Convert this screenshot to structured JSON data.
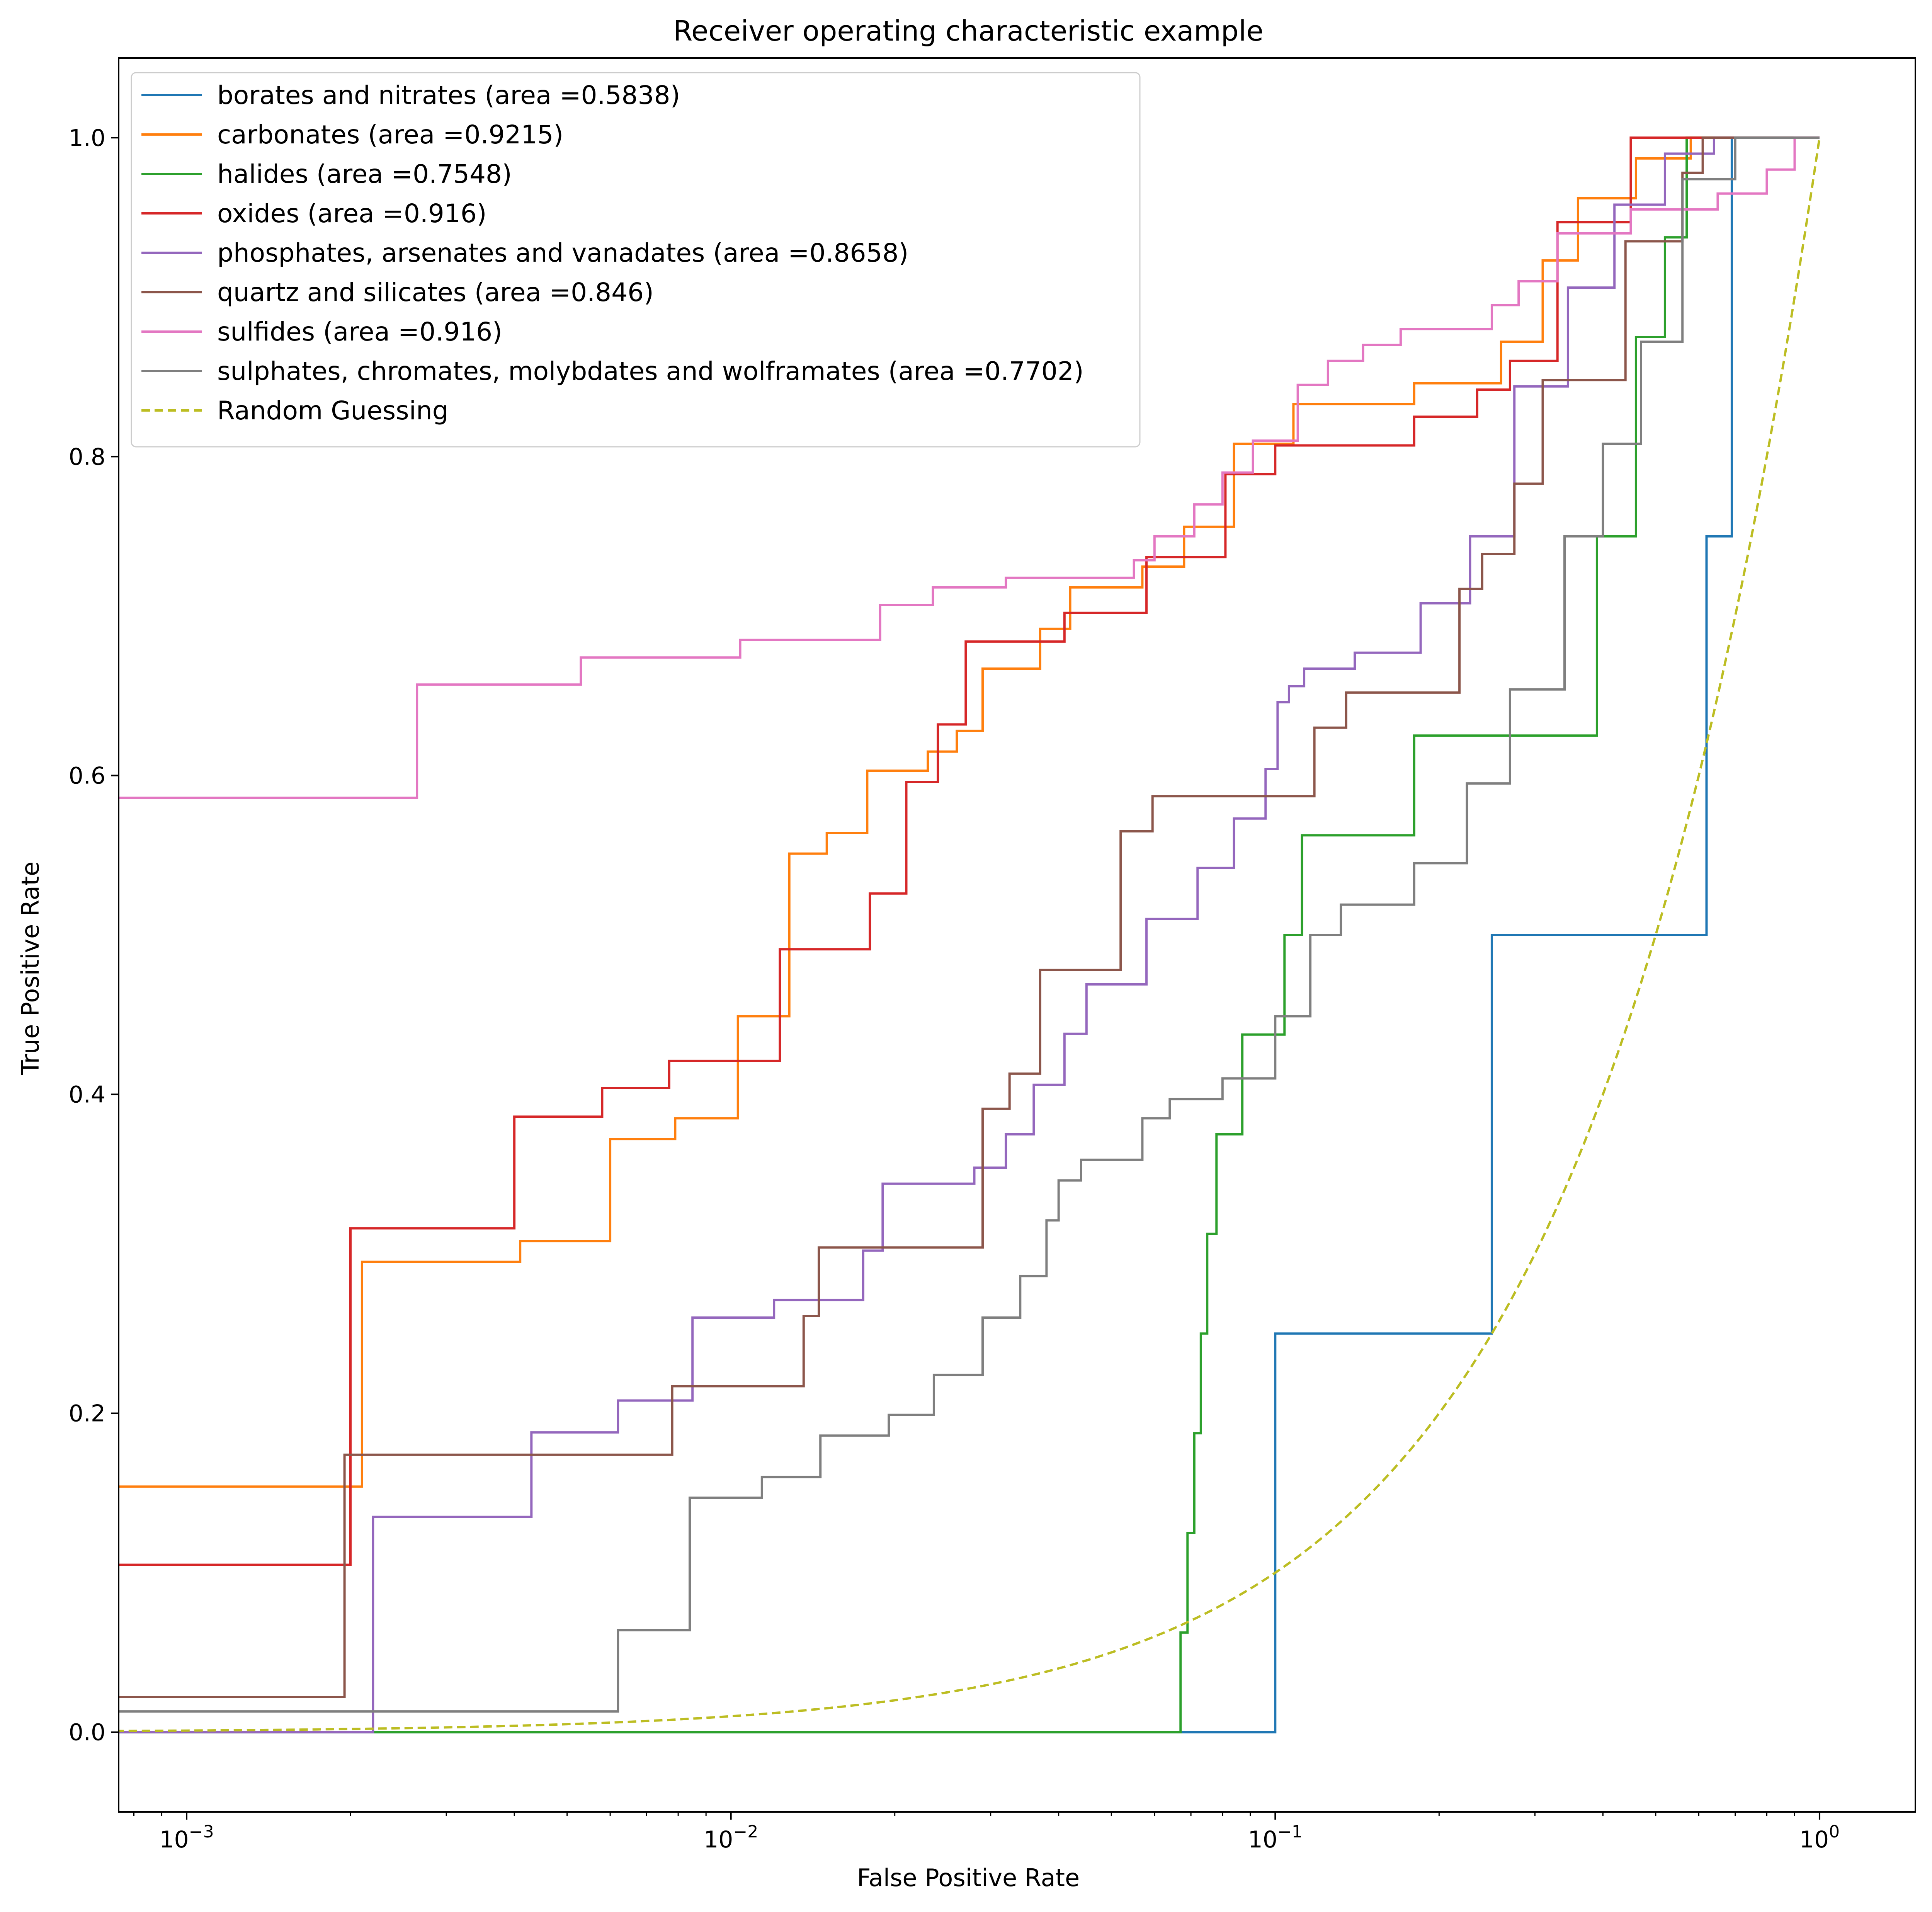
{
  "chart_data": {
    "type": "line",
    "title": "Receiver operating characteristic example",
    "xlabel": "False Positive Rate",
    "ylabel": "True Positive Rate",
    "xscale": "log",
    "xlim": [
      0.00075,
      1.5
    ],
    "ylim": [
      -0.05,
      1.05
    ],
    "xticks": [
      {
        "value": 0.001,
        "base": "10",
        "exp": "−3"
      },
      {
        "value": 0.01,
        "base": "10",
        "exp": "−2"
      },
      {
        "value": 0.1,
        "base": "10",
        "exp": "−1"
      },
      {
        "value": 1,
        "base": "10",
        "exp": "0"
      }
    ],
    "yticks": [
      {
        "value": 0.0,
        "label": "0.0"
      },
      {
        "value": 0.2,
        "label": "0.2"
      },
      {
        "value": 0.4,
        "label": "0.4"
      },
      {
        "value": 0.6,
        "label": "0.6"
      },
      {
        "value": 0.8,
        "label": "0.8"
      },
      {
        "value": 1.0,
        "label": "1.0"
      }
    ],
    "grid": false,
    "legend_position": "upper-left",
    "series": [
      {
        "name": "borates and nitrates (area =0.5838)",
        "color": "#1f77b4",
        "style": "step",
        "x": [
          0.0007,
          0.1,
          0.1,
          0.25,
          0.25,
          0.62,
          0.62,
          0.69,
          0.69
        ],
        "y": [
          0.0,
          0.0,
          0.25,
          0.25,
          0.5,
          0.5,
          0.75,
          0.75,
          1.0
        ]
      },
      {
        "name": "carbonates (area =0.9215)",
        "color": "#ff7f0e",
        "style": "step",
        "x": [
          0.0007,
          0.0021,
          0.0021,
          0.0041,
          0.0041,
          0.006,
          0.006,
          0.0079,
          0.0079,
          0.0103,
          0.0103,
          0.0128,
          0.0128,
          0.015,
          0.015,
          0.0178,
          0.0178,
          0.023,
          0.023,
          0.026,
          0.026,
          0.029,
          0.029,
          0.037,
          0.037,
          0.042,
          0.042,
          0.057,
          0.057,
          0.068,
          0.068,
          0.084,
          0.084,
          0.108,
          0.108,
          0.18,
          0.18,
          0.26,
          0.26,
          0.31,
          0.31,
          0.36,
          0.36,
          0.46,
          0.46,
          0.58,
          0.58,
          0.7,
          0.7,
          1.0
        ],
        "y": [
          0.154,
          0.154,
          0.295,
          0.295,
          0.308,
          0.308,
          0.372,
          0.372,
          0.385,
          0.385,
          0.449,
          0.449,
          0.551,
          0.551,
          0.564,
          0.564,
          0.603,
          0.603,
          0.615,
          0.615,
          0.628,
          0.628,
          0.667,
          0.667,
          0.692,
          0.692,
          0.718,
          0.718,
          0.731,
          0.731,
          0.756,
          0.756,
          0.808,
          0.808,
          0.833,
          0.833,
          0.846,
          0.846,
          0.872,
          0.872,
          0.923,
          0.923,
          0.962,
          0.962,
          0.987,
          0.987,
          1.0,
          1.0,
          1.0,
          1.0
        ]
      },
      {
        "name": "halides (area =0.7548)",
        "color": "#2ca02c",
        "style": "step",
        "x": [
          0.0007,
          0.067,
          0.067,
          0.069,
          0.069,
          0.071,
          0.071,
          0.073,
          0.073,
          0.075,
          0.075,
          0.078,
          0.078,
          0.087,
          0.087,
          0.104,
          0.104,
          0.108,
          0.108,
          0.112,
          0.112,
          0.135,
          0.135,
          0.18,
          0.18,
          0.39,
          0.39,
          0.46,
          0.46,
          0.52,
          0.52,
          0.57,
          0.57,
          0.6,
          0.6,
          1.0
        ],
        "y": [
          0.0,
          0.0,
          0.0625,
          0.0625,
          0.125,
          0.125,
          0.1875,
          0.1875,
          0.25,
          0.25,
          0.3125,
          0.3125,
          0.375,
          0.375,
          0.4375,
          0.4375,
          0.5,
          0.5,
          0.5,
          0.5,
          0.5625,
          0.5625,
          0.5625,
          0.5625,
          0.625,
          0.625,
          0.75,
          0.75,
          0.875,
          0.875,
          0.9375,
          0.9375,
          1.0,
          1.0,
          1.0,
          1.0
        ]
      },
      {
        "name": "oxides (area =0.916)",
        "color": "#d62728",
        "style": "step",
        "x": [
          0.0007,
          0.002,
          0.002,
          0.004,
          0.004,
          0.0058,
          0.0058,
          0.0077,
          0.0077,
          0.0123,
          0.0123,
          0.018,
          0.018,
          0.021,
          0.021,
          0.024,
          0.024,
          0.027,
          0.027,
          0.041,
          0.041,
          0.058,
          0.058,
          0.081,
          0.081,
          0.1,
          0.1,
          0.18,
          0.18,
          0.235,
          0.235,
          0.27,
          0.27,
          0.33,
          0.33,
          0.45,
          0.45,
          0.62,
          0.62,
          1.0
        ],
        "y": [
          0.105,
          0.105,
          0.316,
          0.316,
          0.386,
          0.386,
          0.404,
          0.404,
          0.421,
          0.421,
          0.491,
          0.491,
          0.526,
          0.526,
          0.596,
          0.596,
          0.632,
          0.632,
          0.684,
          0.684,
          0.702,
          0.702,
          0.737,
          0.737,
          0.789,
          0.789,
          0.807,
          0.807,
          0.825,
          0.825,
          0.842,
          0.842,
          0.86,
          0.86,
          0.947,
          0.947,
          1.0,
          1.0,
          1.0,
          1.0
        ]
      },
      {
        "name": "phosphates, arsenates and vanadates (area =0.8658)",
        "color": "#9467bd",
        "style": "step",
        "x": [
          0.0007,
          0.0022,
          0.0022,
          0.0043,
          0.0043,
          0.0062,
          0.0062,
          0.0085,
          0.0085,
          0.012,
          0.012,
          0.0175,
          0.0175,
          0.019,
          0.019,
          0.028,
          0.028,
          0.032,
          0.032,
          0.036,
          0.036,
          0.041,
          0.041,
          0.045,
          0.045,
          0.058,
          0.058,
          0.072,
          0.072,
          0.084,
          0.084,
          0.096,
          0.096,
          0.101,
          0.101,
          0.106,
          0.106,
          0.113,
          0.113,
          0.14,
          0.14,
          0.185,
          0.185,
          0.228,
          0.228,
          0.275,
          0.275,
          0.345,
          0.345,
          0.42,
          0.42,
          0.52,
          0.52,
          0.64,
          0.64,
          1.0
        ],
        "y": [
          0.0,
          0.0,
          0.135,
          0.135,
          0.188,
          0.188,
          0.208,
          0.208,
          0.26,
          0.26,
          0.271,
          0.271,
          0.302,
          0.302,
          0.344,
          0.344,
          0.354,
          0.354,
          0.375,
          0.375,
          0.406,
          0.406,
          0.438,
          0.438,
          0.469,
          0.469,
          0.51,
          0.51,
          0.542,
          0.542,
          0.573,
          0.573,
          0.604,
          0.604,
          0.646,
          0.646,
          0.656,
          0.656,
          0.667,
          0.667,
          0.677,
          0.677,
          0.708,
          0.708,
          0.75,
          0.75,
          0.844,
          0.844,
          0.906,
          0.906,
          0.958,
          0.958,
          0.99,
          0.99,
          1.0,
          1.0
        ]
      },
      {
        "name": "quartz and silicates (area =0.846)",
        "color": "#8c564b",
        "style": "step",
        "x": [
          0.0007,
          0.00195,
          0.00195,
          0.0078,
          0.0078,
          0.0136,
          0.0136,
          0.0145,
          0.0145,
          0.029,
          0.029,
          0.0325,
          0.0325,
          0.037,
          0.037,
          0.052,
          0.052,
          0.0595,
          0.0595,
          0.118,
          0.118,
          0.135,
          0.135,
          0.218,
          0.218,
          0.24,
          0.24,
          0.275,
          0.275,
          0.31,
          0.31,
          0.44,
          0.44,
          0.56,
          0.56,
          0.61,
          0.61,
          1.0
        ],
        "y": [
          0.022,
          0.022,
          0.174,
          0.174,
          0.217,
          0.217,
          0.261,
          0.261,
          0.304,
          0.304,
          0.391,
          0.391,
          0.413,
          0.413,
          0.478,
          0.478,
          0.565,
          0.565,
          0.587,
          0.587,
          0.63,
          0.63,
          0.652,
          0.652,
          0.717,
          0.717,
          0.739,
          0.739,
          0.783,
          0.783,
          0.848,
          0.848,
          0.935,
          0.935,
          0.978,
          0.978,
          1.0,
          1.0
        ]
      },
      {
        "name": "sulfides (area =0.916)",
        "color": "#e377c2",
        "style": "step",
        "x": [
          0.0007,
          0.00265,
          0.00265,
          0.0053,
          0.0053,
          0.0104,
          0.0104,
          0.0188,
          0.0188,
          0.0235,
          0.0235,
          0.032,
          0.032,
          0.055,
          0.055,
          0.06,
          0.06,
          0.071,
          0.071,
          0.08,
          0.08,
          0.091,
          0.091,
          0.11,
          0.11,
          0.125,
          0.125,
          0.145,
          0.145,
          0.17,
          0.17,
          0.25,
          0.25,
          0.28,
          0.28,
          0.33,
          0.33,
          0.45,
          0.45,
          0.65,
          0.65,
          0.8,
          0.8,
          0.9,
          0.9,
          1.0
        ],
        "y": [
          0.586,
          0.586,
          0.657,
          0.657,
          0.674,
          0.674,
          0.685,
          0.685,
          0.707,
          0.707,
          0.718,
          0.718,
          0.724,
          0.724,
          0.735,
          0.735,
          0.75,
          0.75,
          0.77,
          0.77,
          0.79,
          0.79,
          0.81,
          0.81,
          0.845,
          0.845,
          0.86,
          0.86,
          0.87,
          0.87,
          0.88,
          0.88,
          0.895,
          0.895,
          0.91,
          0.91,
          0.94,
          0.94,
          0.955,
          0.955,
          0.965,
          0.965,
          0.98,
          0.98,
          1.0,
          1.0
        ]
      },
      {
        "name": "sulphates, chromates, molybdates and wolframates (area =0.7702)",
        "color": "#7f7f7f",
        "style": "step",
        "x": [
          0.0007,
          0.0062,
          0.0062,
          0.0084,
          0.0084,
          0.0114,
          0.0114,
          0.0146,
          0.0146,
          0.0195,
          0.0195,
          0.0236,
          0.0236,
          0.029,
          0.029,
          0.034,
          0.034,
          0.038,
          0.038,
          0.04,
          0.04,
          0.044,
          0.044,
          0.057,
          0.057,
          0.064,
          0.064,
          0.08,
          0.08,
          0.1,
          0.1,
          0.116,
          0.116,
          0.132,
          0.132,
          0.18,
          0.18,
          0.225,
          0.225,
          0.27,
          0.27,
          0.34,
          0.34,
          0.4,
          0.4,
          0.47,
          0.47,
          0.56,
          0.56,
          0.7,
          0.7,
          1.0
        ],
        "y": [
          0.013,
          0.013,
          0.064,
          0.064,
          0.147,
          0.147,
          0.16,
          0.16,
          0.186,
          0.186,
          0.199,
          0.199,
          0.224,
          0.224,
          0.26,
          0.26,
          0.286,
          0.286,
          0.321,
          0.321,
          0.346,
          0.346,
          0.359,
          0.359,
          0.385,
          0.385,
          0.397,
          0.397,
          0.41,
          0.41,
          0.449,
          0.449,
          0.5,
          0.5,
          0.519,
          0.519,
          0.545,
          0.545,
          0.595,
          0.595,
          0.654,
          0.654,
          0.75,
          0.75,
          0.808,
          0.808,
          0.872,
          0.872,
          0.974,
          0.974,
          1.0,
          1.0
        ]
      },
      {
        "name": "Random Guessing",
        "color": "#bcbd22",
        "style": "dashed-diagonal",
        "x": [
          0.0007,
          1.0
        ],
        "y": [
          0.0007,
          1.0
        ]
      }
    ]
  }
}
